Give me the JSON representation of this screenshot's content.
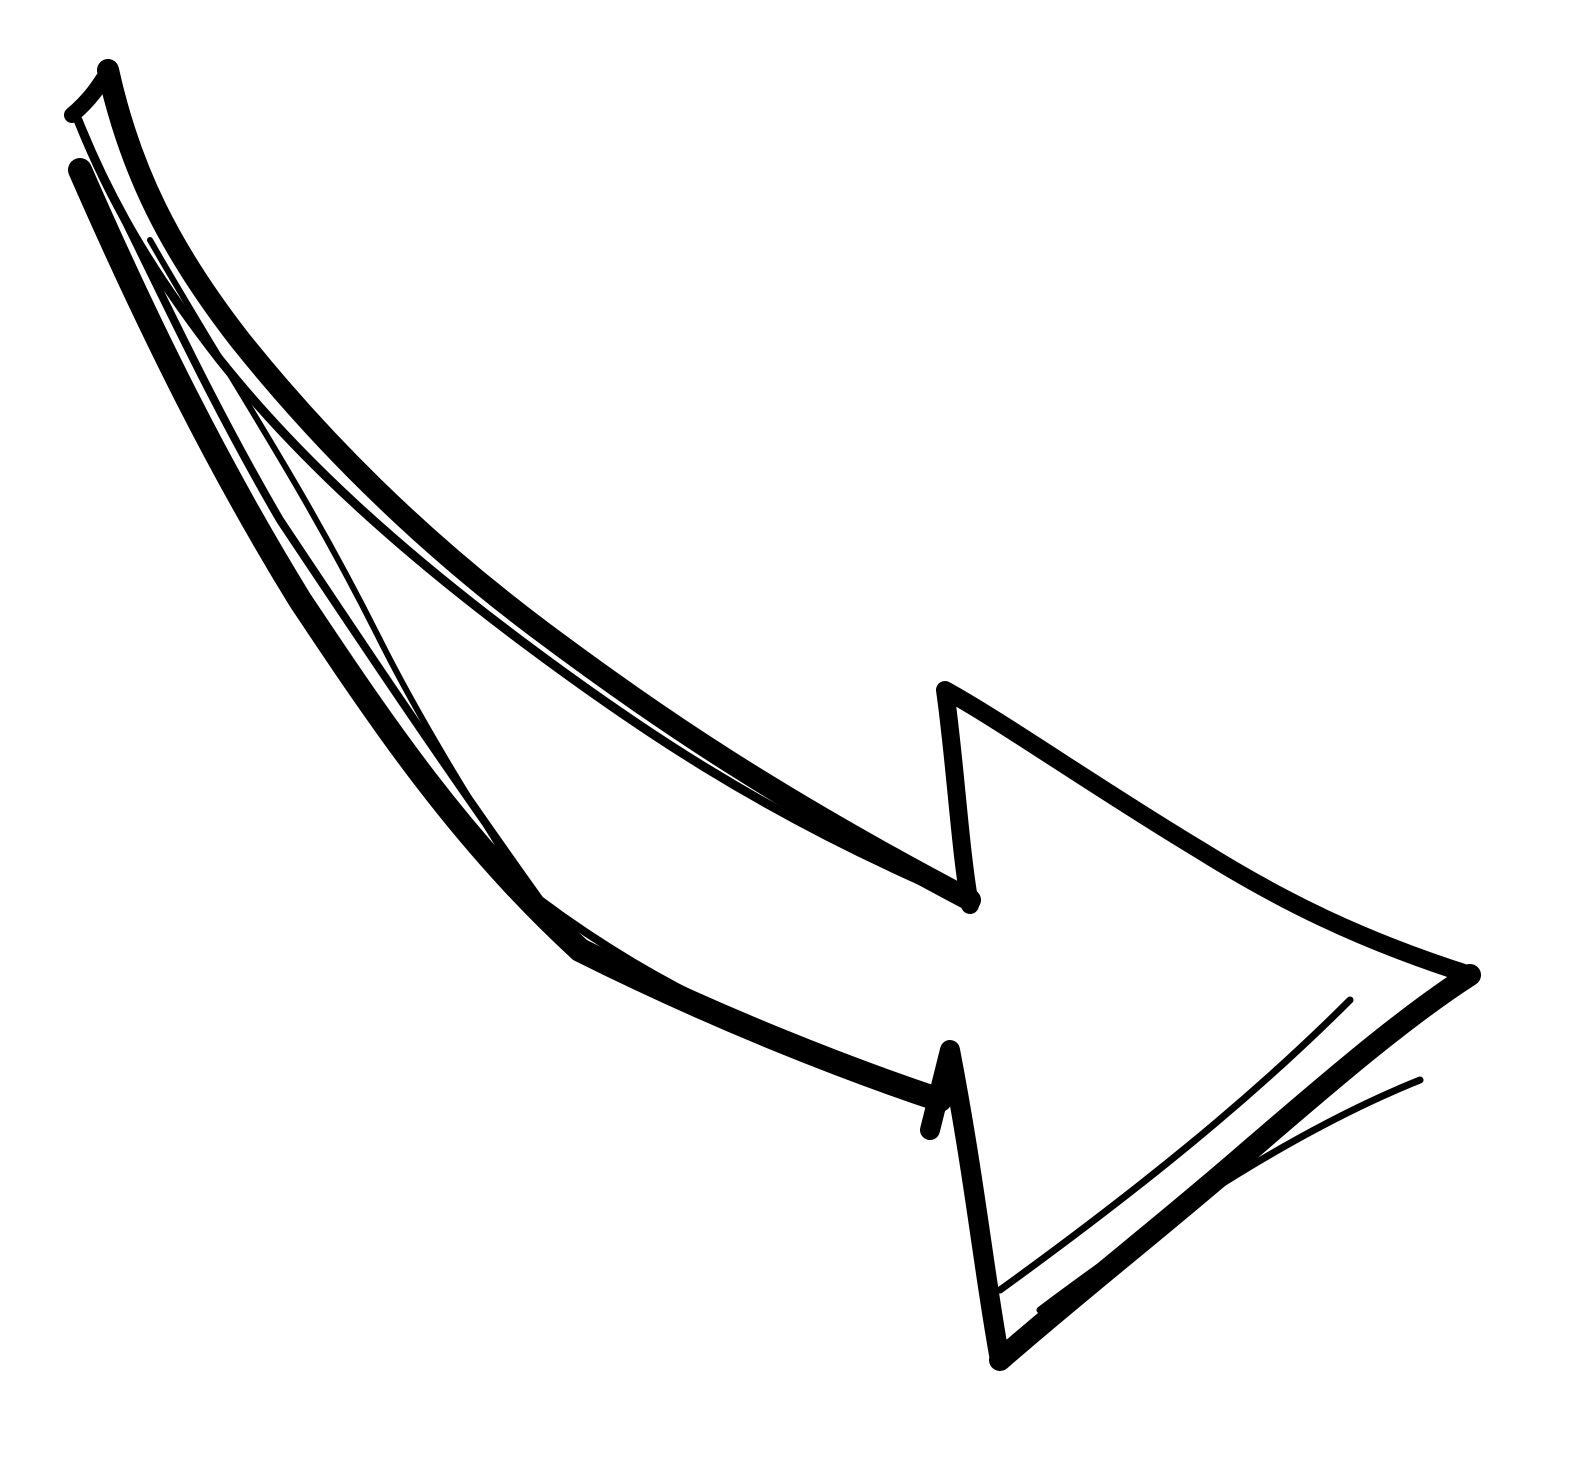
{
  "artwork": {
    "icon": "hand-drawn-curved-arrow-icon",
    "colors": {
      "ink": "#000000",
      "background": "#ffffff"
    }
  }
}
